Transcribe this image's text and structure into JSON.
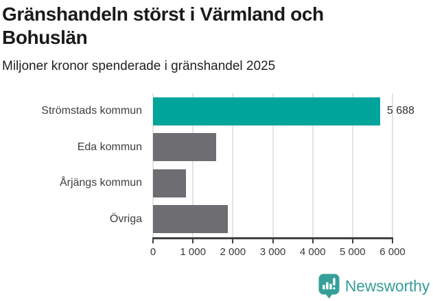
{
  "header": {
    "title": "Gränshandeln störst i Värmland och\nBohuslän",
    "subtitle": "Miljoner kronor spenderade i gränshandel 2025"
  },
  "chart_data": {
    "type": "bar",
    "orientation": "horizontal",
    "title": "Gränshandeln störst i Värmland och Bohuslän",
    "subtitle": "Miljoner kronor spenderade i gränshandel 2025",
    "categories": [
      "Strömstads kommun",
      "Eda kommun",
      "Årjängs kommun",
      "Övriga"
    ],
    "values": [
      5688,
      1575,
      830,
      1880
    ],
    "value_labels": [
      "5 688",
      "",
      "",
      ""
    ],
    "xlabel": "",
    "ylabel": "",
    "xlim": [
      0,
      6000
    ],
    "xticks": [
      0,
      1000,
      2000,
      3000,
      4000,
      5000,
      6000
    ],
    "xtick_labels": [
      "0",
      "1 000",
      "2 000",
      "3 000",
      "4 000",
      "5 000",
      "6 000"
    ],
    "grid": "vertical-only",
    "legend": "none",
    "bar_colors": [
      "#00a49a",
      "#6d6d72",
      "#6d6d72",
      "#6d6d72"
    ],
    "accent_color": "#00a49a",
    "default_bar_color": "#6d6d72",
    "gridline_color": "#e3e3e3",
    "axis_color": "#414141"
  },
  "footer": {
    "brand": "Newsworthy",
    "brand_color": "#389e98",
    "icon": "bar-chart-speech-bubble"
  }
}
